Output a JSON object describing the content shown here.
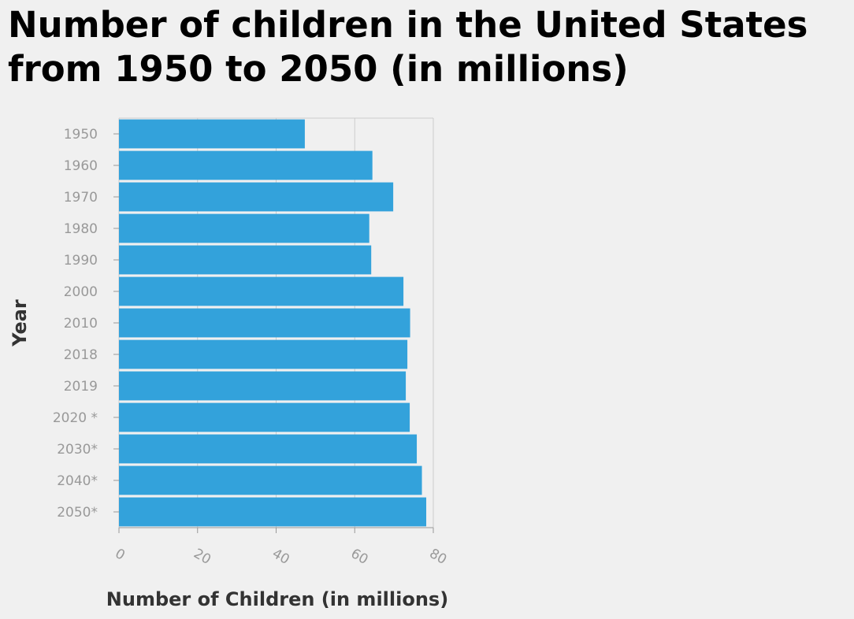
{
  "chart_data": {
    "type": "bar",
    "orientation": "horizontal",
    "title": "Number of children in the United States from 1950 to 2050 (in millions)",
    "xlabel": "Number of Children (in millions)",
    "ylabel": "Year",
    "categories": [
      "1950",
      "1960",
      "1970",
      "1980",
      "1990",
      "2000",
      "2010",
      "2018",
      "2019",
      "2020 *",
      "2030*",
      "2040*",
      "2050*"
    ],
    "series": [
      {
        "values": [
          47.3,
          64.5,
          69.8,
          63.7,
          64.2,
          72.4,
          74.1,
          73.4,
          73.0,
          74.0,
          75.8,
          77.1,
          78.2
        ]
      }
    ],
    "xlim": [
      0,
      80
    ],
    "xticks": [
      "0",
      "20",
      "40",
      "60",
      "80"
    ],
    "bar_color": "#33a2db",
    "grid": true,
    "grid_axis": "x",
    "legend": "none"
  }
}
